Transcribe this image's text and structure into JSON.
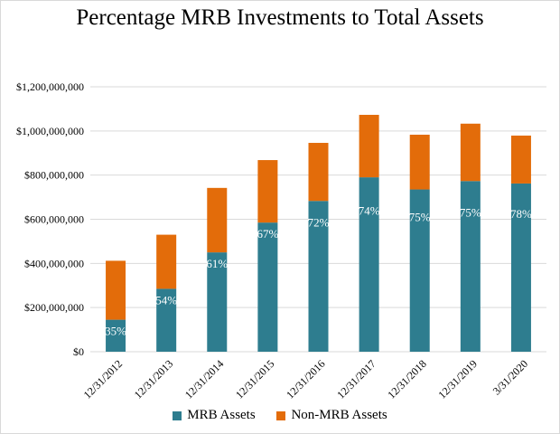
{
  "chart_data": {
    "type": "bar",
    "stacked": true,
    "title": "Percentage MRB Investments to Total Assets",
    "xlabel": "",
    "ylabel": "",
    "ylim": [
      0,
      1200000000
    ],
    "yticks": [
      "$0",
      "$200,000,000",
      "$400,000,000",
      "$600,000,000",
      "$800,000,000",
      "$1,000,000,000",
      "$1,200,000,000"
    ],
    "grid": true,
    "legend_position": "bottom",
    "categories": [
      "12/31/2012",
      "12/31/2013",
      "12/31/2014",
      "12/31/2015",
      "12/31/2016",
      "12/31/2017",
      "12/31/2018",
      "12/31/2019",
      "3/31/2020"
    ],
    "series": [
      {
        "name": "MRB Assets",
        "color": "#2E7D8F",
        "values": [
          145000000,
          285000000,
          450000000,
          585000000,
          683000000,
          790000000,
          735000000,
          773000000,
          762000000
        ]
      },
      {
        "name": "Non-MRB Assets",
        "color": "#E36C0A",
        "values": [
          267000000,
          245000000,
          292000000,
          283000000,
          263000000,
          283000000,
          248000000,
          260000000,
          217000000
        ]
      }
    ],
    "data_labels": [
      "35%",
      "54%",
      "61%",
      "67%",
      "72%",
      "74%",
      "75%",
      "75%",
      "78%"
    ]
  }
}
